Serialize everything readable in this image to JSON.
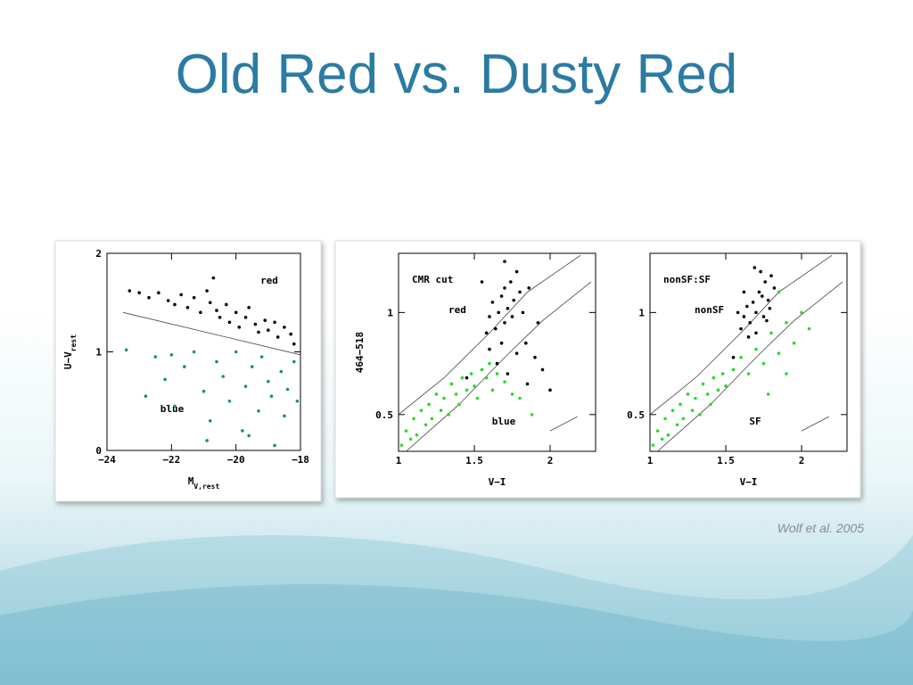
{
  "title": "Old Red vs. Dusty Red",
  "citation": "Wolf et al. 2005",
  "chart_data": [
    {
      "type": "scatter",
      "xlim": [
        -24,
        -18
      ],
      "ylim": [
        0,
        2
      ],
      "xticks": [
        {
          "value": -24,
          "label": "−24"
        },
        {
          "value": -22,
          "label": "−22"
        },
        {
          "value": -20,
          "label": "−20"
        },
        {
          "value": -18,
          "label": "−18"
        }
      ],
      "yticks": [
        0,
        1,
        2
      ],
      "x_label": {
        "main": "M",
        "sub": "V,rest"
      },
      "y_label": {
        "main": "U−V",
        "sub": "rest"
      },
      "lines": [
        {
          "x": [
            -23.5,
            -18
          ],
          "y": [
            1.4,
            0.97
          ]
        }
      ],
      "series": [
        {
          "name": "red",
          "color": "#000000",
          "x": [
            -23.3,
            -23.0,
            -22.7,
            -22.4,
            -22.1,
            -21.9,
            -21.7,
            -21.5,
            -21.3,
            -21.1,
            -20.9,
            -20.8,
            -20.6,
            -20.5,
            -20.3,
            -20.2,
            -20.0,
            -19.9,
            -19.7,
            -19.6,
            -19.4,
            -19.3,
            -19.1,
            -19.0,
            -18.8,
            -18.7,
            -18.5,
            -18.3,
            -18.2,
            -20.7
          ],
          "y": [
            1.62,
            1.6,
            1.55,
            1.6,
            1.52,
            1.48,
            1.58,
            1.45,
            1.55,
            1.4,
            1.62,
            1.5,
            1.42,
            1.35,
            1.48,
            1.3,
            1.4,
            1.25,
            1.35,
            1.45,
            1.28,
            1.2,
            1.32,
            1.22,
            1.3,
            1.15,
            1.25,
            1.18,
            1.08,
            1.75
          ]
        },
        {
          "name": "blue",
          "color": "#13995a",
          "x": [
            -23.4,
            -22.8,
            -22.5,
            -22.2,
            -21.9,
            -21.6,
            -21.3,
            -21.0,
            -20.8,
            -20.6,
            -20.4,
            -20.2,
            -20.0,
            -19.8,
            -19.7,
            -19.5,
            -19.3,
            -19.2,
            -19.0,
            -18.9,
            -18.8,
            -18.6,
            -18.5,
            -18.4,
            -18.2,
            -18.1,
            -19.6,
            -20.9,
            -22.0
          ],
          "y": [
            1.02,
            0.55,
            0.95,
            0.72,
            0.45,
            0.85,
            1.0,
            0.6,
            0.3,
            0.9,
            0.75,
            0.5,
            1.0,
            0.2,
            0.65,
            0.85,
            0.4,
            0.95,
            0.7,
            0.55,
            0.05,
            0.8,
            0.35,
            0.62,
            0.9,
            0.5,
            0.15,
            0.1,
            0.97
          ]
        }
      ]
    },
    {
      "type": "scatter",
      "xlim": [
        1,
        2.3
      ],
      "ylim": [
        0.32,
        1.29
      ],
      "xticks": [
        1,
        1.5,
        2
      ],
      "yticks": [
        0.5,
        1
      ],
      "x_label": "V−I",
      "y_label": "464−518",
      "annotation": "CMR cut",
      "lines": [
        {
          "x": [
            1,
            1.3,
            1.6,
            1.85,
            2.2
          ],
          "y": [
            0.5,
            0.68,
            0.9,
            1.1,
            1.28
          ]
        },
        {
          "x": [
            1.05,
            1.4,
            1.7,
            1.95,
            2.27
          ],
          "y": [
            0.32,
            0.55,
            0.78,
            0.96,
            1.15
          ]
        },
        {
          "x": [
            2,
            2.18
          ],
          "y": [
            0.42,
            0.49
          ]
        }
      ],
      "series": [
        {
          "name": "red",
          "color": "#000000",
          "x": [
            1.58,
            1.6,
            1.62,
            1.64,
            1.66,
            1.68,
            1.7,
            1.7,
            1.72,
            1.74,
            1.75,
            1.76,
            1.78,
            1.8,
            1.82,
            1.84,
            1.86,
            1.6,
            1.65,
            1.72,
            1.78,
            1.9,
            1.95,
            2.0,
            1.7,
            1.55,
            1.45,
            1.85,
            1.92,
            1.68
          ],
          "y": [
            0.9,
            0.98,
            1.05,
            0.92,
            1.0,
            1.08,
            0.95,
            1.12,
            1.02,
            1.15,
            0.98,
            1.06,
            1.2,
            1.1,
            1.0,
            0.85,
            1.12,
            0.82,
            0.75,
            0.7,
            0.8,
            0.78,
            0.72,
            0.62,
            1.25,
            1.15,
            0.68,
            0.65,
            0.95,
            0.85
          ]
        },
        {
          "name": "blue",
          "color": "#22dd22",
          "x": [
            1.02,
            1.05,
            1.08,
            1.1,
            1.12,
            1.15,
            1.18,
            1.2,
            1.22,
            1.25,
            1.28,
            1.3,
            1.33,
            1.35,
            1.38,
            1.4,
            1.42,
            1.45,
            1.48,
            1.5,
            1.52,
            1.55,
            1.58,
            1.6,
            1.62,
            1.65,
            1.7,
            1.75,
            1.8,
            1.88
          ],
          "y": [
            0.35,
            0.42,
            0.38,
            0.48,
            0.4,
            0.52,
            0.45,
            0.55,
            0.48,
            0.6,
            0.52,
            0.58,
            0.5,
            0.65,
            0.6,
            0.55,
            0.68,
            0.62,
            0.7,
            0.64,
            0.58,
            0.72,
            0.68,
            0.75,
            0.62,
            0.7,
            0.66,
            0.6,
            0.58,
            0.5
          ]
        }
      ]
    },
    {
      "type": "scatter",
      "xlim": [
        1,
        2.3
      ],
      "ylim": [
        0.32,
        1.29
      ],
      "xticks": [
        1,
        1.5,
        2
      ],
      "yticks": [
        0.5,
        1
      ],
      "x_label": "V−I",
      "annotation": "nonSF:SF",
      "lines": [
        {
          "x": [
            1,
            1.3,
            1.6,
            1.85,
            2.2
          ],
          "y": [
            0.5,
            0.68,
            0.9,
            1.1,
            1.28
          ]
        },
        {
          "x": [
            1.05,
            1.4,
            1.7,
            1.95,
            2.27
          ],
          "y": [
            0.32,
            0.55,
            0.78,
            0.96,
            1.15
          ]
        },
        {
          "x": [
            2,
            2.18
          ],
          "y": [
            0.42,
            0.49
          ]
        }
      ],
      "series": [
        {
          "name": "nonSF",
          "color": "#000000",
          "x": [
            1.6,
            1.62,
            1.64,
            1.66,
            1.68,
            1.7,
            1.72,
            1.74,
            1.75,
            1.76,
            1.78,
            1.8,
            1.82,
            1.65,
            1.7,
            1.58,
            1.73,
            1.79,
            1.69,
            1.62,
            1.55,
            1.77
          ],
          "y": [
            0.92,
            0.98,
            1.03,
            0.95,
            1.05,
            1.0,
            1.1,
            1.08,
            0.98,
            1.15,
            1.06,
            1.18,
            1.12,
            0.88,
            0.9,
            1.0,
            1.2,
            1.02,
            1.22,
            1.1,
            0.78,
            0.96
          ]
        },
        {
          "name": "SF",
          "color": "#22dd22",
          "x": [
            1.02,
            1.05,
            1.08,
            1.1,
            1.12,
            1.15,
            1.18,
            1.2,
            1.22,
            1.25,
            1.28,
            1.3,
            1.33,
            1.35,
            1.38,
            1.4,
            1.42,
            1.45,
            1.48,
            1.5,
            1.55,
            1.6,
            1.65,
            1.7,
            1.75,
            1.8,
            1.85,
            1.9,
            1.95,
            2.0,
            2.05,
            1.85,
            1.78,
            1.9
          ],
          "y": [
            0.35,
            0.42,
            0.38,
            0.48,
            0.4,
            0.52,
            0.45,
            0.55,
            0.48,
            0.6,
            0.52,
            0.58,
            0.5,
            0.65,
            0.6,
            0.55,
            0.68,
            0.62,
            0.7,
            0.64,
            0.72,
            0.78,
            0.7,
            0.82,
            0.75,
            0.9,
            0.8,
            0.95,
            0.85,
            1.0,
            0.92,
            1.1,
            0.6,
            0.7
          ]
        }
      ]
    }
  ]
}
